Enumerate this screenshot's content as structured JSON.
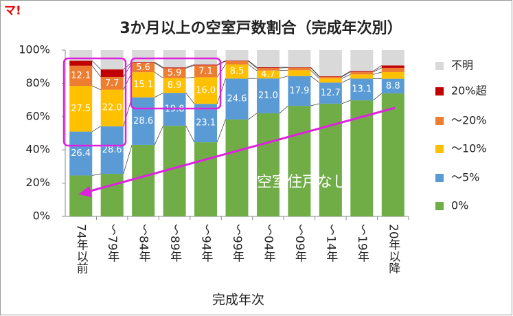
{
  "logo": "マ!",
  "chart_data": {
    "type": "stacked-bar",
    "title": "3か月以上の空室戸数割合（完成年次別）",
    "x_label": "完成年次",
    "annotation": "空室住戸なし",
    "categories": [
      "74年以前",
      "～79年",
      "～84年",
      "～89年",
      "～94年",
      "～99年",
      "～04年",
      "～09年",
      "～14年",
      "～19年",
      "20年以降"
    ],
    "series": [
      {
        "name": "0%",
        "color": "#70ad47",
        "values": [
          24.6,
          25.6,
          43.0,
          54.5,
          44.6,
          58.3,
          62.0,
          66.5,
          67.8,
          69.8,
          74.0
        ]
      },
      {
        "name": "～5%",
        "color": "#5b9bd5",
        "values": [
          26.4,
          28.6,
          28.6,
          19.8,
          23.1,
          24.6,
          21.0,
          17.9,
          12.7,
          13.1,
          8.8
        ],
        "value_labels": [
          "26.4",
          "28.6",
          "28.6",
          "19.8",
          "23.1",
          "24.6",
          "21.0",
          "17.9",
          "12.7",
          "13.1",
          "8.8"
        ]
      },
      {
        "name": "～10%",
        "color": "#ffc000",
        "values": [
          27.5,
          22.0,
          15.1,
          8.9,
          16.0,
          8.5,
          4.7,
          3.5,
          2.5,
          2.5,
          4.0
        ],
        "value_labels": [
          "27.5",
          "22.0",
          "15.1",
          "8.9",
          "16.0",
          "8.5",
          "4.7",
          null,
          null,
          null,
          null
        ]
      },
      {
        "name": "～20%",
        "color": "#ed7d31",
        "values": [
          12.1,
          7.7,
          5.6,
          5.9,
          7.1,
          2.0,
          1.5,
          1.5,
          1.0,
          1.5,
          2.5
        ],
        "value_labels": [
          "12.1",
          "7.7",
          "5.6",
          "5.9",
          "7.1",
          null,
          null,
          null,
          null,
          null,
          null
        ]
      },
      {
        "name": "20%超",
        "color": "#c00000",
        "values": [
          3.0,
          4.5,
          0.5,
          0.5,
          0.5,
          0.3,
          0.5,
          0.3,
          0.3,
          0.5,
          1.5
        ]
      },
      {
        "name": "不明",
        "color": "#d9d9d9",
        "values": [
          6.4,
          11.6,
          7.2,
          10.4,
          8.7,
          6.3,
          10.3,
          10.3,
          15.7,
          12.6,
          9.2
        ]
      }
    ],
    "ylim": [
      0,
      100
    ],
    "yticks": [
      {
        "value": 0,
        "label": "0%"
      },
      {
        "value": 20,
        "label": "20%"
      },
      {
        "value": 40,
        "label": "40%"
      },
      {
        "value": 60,
        "label": "60%"
      },
      {
        "value": 80,
        "label": "80%"
      },
      {
        "value": 100,
        "label": "100%"
      }
    ],
    "grid": false
  }
}
